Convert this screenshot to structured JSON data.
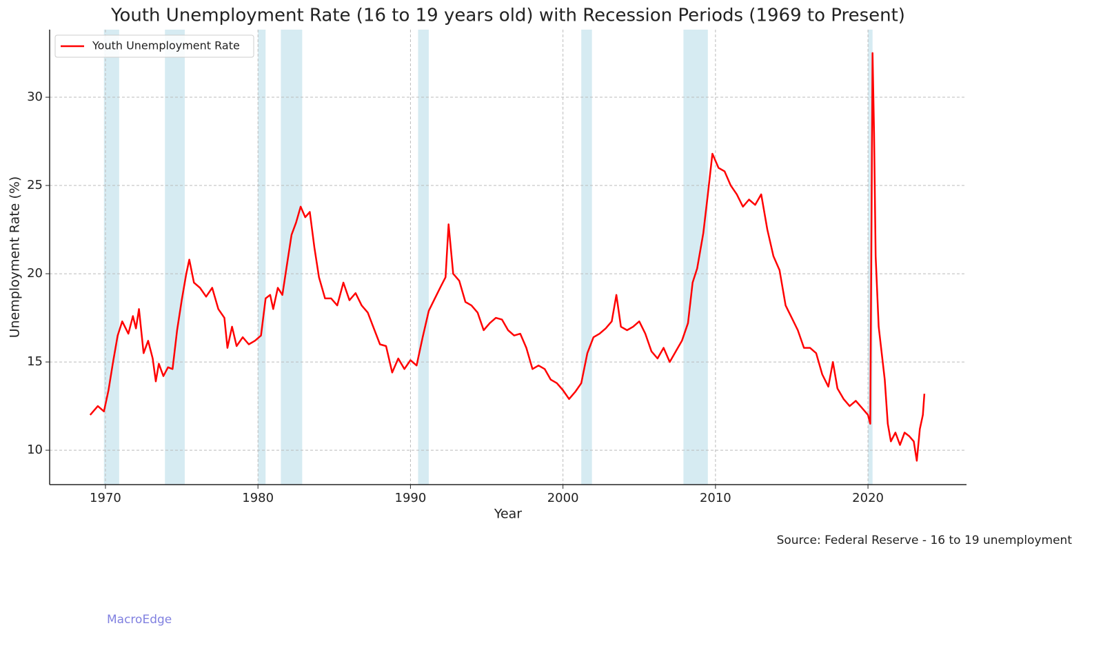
{
  "chart_data": {
    "type": "line",
    "title": "Youth Unemployment Rate (16 to 19 years old) with Recession Periods (1969 to Present)",
    "xlabel": "Year",
    "ylabel": "Unemployment Rate (%)",
    "source": "Source: Federal Reserve - 16 to 19 unemployment",
    "watermark": "MacroEdge",
    "legend": "upper left",
    "grid": true,
    "xlim": [
      1966.34,
      2026.46
    ],
    "ylim": [
      8.05,
      33.83
    ],
    "xticks": [
      1970,
      1980,
      1990,
      2000,
      2010,
      2020
    ],
    "yticks": [
      10,
      15,
      20,
      25,
      30
    ],
    "recession_color": "#add8e6",
    "recessions": [
      [
        1969.9,
        1970.9
      ],
      [
        1973.9,
        1975.2
      ],
      [
        1980.0,
        1980.5
      ],
      [
        1981.5,
        1982.9
      ],
      [
        1990.5,
        1991.2
      ],
      [
        2001.2,
        2001.9
      ],
      [
        2007.9,
        2009.5
      ],
      [
        2020.0,
        2020.3
      ]
    ],
    "x": [
      1969.0,
      1969.5,
      1969.9,
      1970.2,
      1970.5,
      1970.8,
      1971.1,
      1971.5,
      1971.8,
      1972.0,
      1972.2,
      1972.5,
      1972.8,
      1973.1,
      1973.3,
      1973.5,
      1973.8,
      1974.1,
      1974.4,
      1974.7,
      1975.0,
      1975.3,
      1975.5,
      1975.8,
      1976.2,
      1976.6,
      1977.0,
      1977.4,
      1977.8,
      1978.0,
      1978.3,
      1978.6,
      1979.0,
      1979.4,
      1979.8,
      1980.2,
      1980.5,
      1980.8,
      1981.0,
      1981.3,
      1981.6,
      1981.9,
      1982.2,
      1982.5,
      1982.8,
      1983.1,
      1983.4,
      1983.7,
      1984.0,
      1984.4,
      1984.8,
      1985.2,
      1985.6,
      1986.0,
      1986.4,
      1986.8,
      1987.2,
      1987.6,
      1988.0,
      1988.4,
      1988.8,
      1989.2,
      1989.6,
      1990.0,
      1990.4,
      1990.8,
      1991.2,
      1991.6,
      1992.0,
      1992.3,
      1992.5,
      1992.8,
      1993.2,
      1993.6,
      1994.0,
      1994.4,
      1994.8,
      1995.2,
      1995.6,
      1996.0,
      1996.4,
      1996.8,
      1997.2,
      1997.6,
      1998.0,
      1998.4,
      1998.8,
      1999.2,
      1999.6,
      2000.0,
      2000.4,
      2000.8,
      2001.2,
      2001.6,
      2002.0,
      2002.4,
      2002.8,
      2003.2,
      2003.5,
      2003.8,
      2004.2,
      2004.6,
      2005.0,
      2005.4,
      2005.8,
      2006.2,
      2006.6,
      2007.0,
      2007.4,
      2007.8,
      2008.2,
      2008.5,
      2008.8,
      2009.2,
      2009.5,
      2009.8,
      2010.2,
      2010.6,
      2011.0,
      2011.4,
      2011.8,
      2012.2,
      2012.6,
      2013.0,
      2013.4,
      2013.8,
      2014.2,
      2014.6,
      2015.0,
      2015.4,
      2015.8,
      2016.2,
      2016.6,
      2017.0,
      2017.4,
      2017.7,
      2018.0,
      2018.4,
      2018.8,
      2019.2,
      2019.6,
      2020.0,
      2020.15,
      2020.3,
      2020.4,
      2020.5,
      2020.7,
      2020.9,
      2021.1,
      2021.3,
      2021.5,
      2021.8,
      2022.1,
      2022.4,
      2022.7,
      2023.0,
      2023.2,
      2023.4,
      2023.6,
      2023.7
    ],
    "series": [
      {
        "name": "Youth Unemployment Rate",
        "color": "#ff0000",
        "values": [
          12.0,
          12.5,
          12.2,
          13.4,
          15.0,
          16.5,
          17.3,
          16.6,
          17.6,
          16.9,
          18.0,
          15.5,
          16.2,
          15.2,
          13.9,
          14.9,
          14.2,
          14.7,
          14.6,
          16.8,
          18.5,
          20.0,
          20.8,
          19.5,
          19.2,
          18.7,
          19.2,
          18.0,
          17.5,
          15.8,
          17.0,
          15.9,
          16.4,
          16.0,
          16.2,
          16.5,
          18.6,
          18.8,
          18.0,
          19.2,
          18.8,
          20.5,
          22.2,
          22.9,
          23.8,
          23.2,
          23.5,
          21.5,
          19.8,
          18.6,
          18.6,
          18.2,
          19.5,
          18.5,
          18.9,
          18.2,
          17.8,
          16.9,
          16.0,
          15.9,
          14.4,
          15.2,
          14.6,
          15.1,
          14.8,
          16.4,
          17.9,
          18.6,
          19.3,
          19.8,
          22.8,
          20.0,
          19.6,
          18.4,
          18.2,
          17.8,
          16.8,
          17.2,
          17.5,
          17.4,
          16.8,
          16.5,
          16.6,
          15.8,
          14.6,
          14.8,
          14.6,
          14.0,
          13.8,
          13.4,
          12.9,
          13.3,
          13.8,
          15.5,
          16.4,
          16.6,
          16.9,
          17.3,
          18.8,
          17.0,
          16.8,
          17.0,
          17.3,
          16.6,
          15.6,
          15.2,
          15.8,
          15.0,
          15.6,
          16.2,
          17.2,
          19.5,
          20.3,
          22.3,
          24.5,
          26.8,
          26.0,
          25.8,
          25.0,
          24.5,
          23.8,
          24.2,
          23.9,
          24.5,
          22.5,
          21.0,
          20.2,
          18.2,
          17.5,
          16.8,
          15.8,
          15.8,
          15.5,
          14.3,
          13.6,
          15.0,
          13.5,
          12.9,
          12.5,
          12.8,
          12.4,
          12.0,
          11.5,
          32.5,
          28.0,
          21.0,
          17.0,
          15.5,
          14.0,
          11.5,
          10.5,
          11.0,
          10.3,
          11.0,
          10.8,
          10.5,
          9.4,
          11.2,
          12.0,
          13.2
        ]
      }
    ]
  }
}
